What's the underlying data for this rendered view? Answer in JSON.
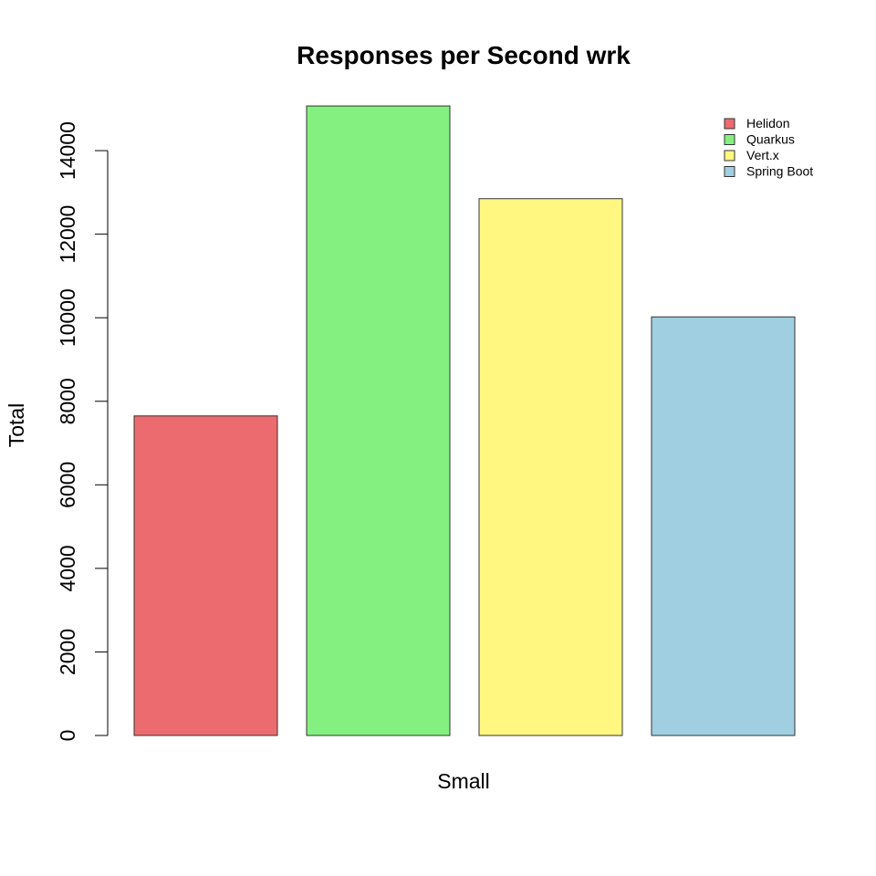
{
  "chart_data": {
    "type": "bar",
    "title": "Responses per Second wrk",
    "xlabel": "Small",
    "ylabel": "Total",
    "ylim": [
      0,
      15000
    ],
    "yticks": [
      0,
      2000,
      4000,
      6000,
      8000,
      10000,
      12000,
      14000
    ],
    "grid": false,
    "legend_position": "top-right",
    "series": [
      {
        "name": "Helidon",
        "value": 7650,
        "color": "#EB6B6F"
      },
      {
        "name": "Quarkus",
        "value": 15070,
        "color": "#83F07F"
      },
      {
        "name": "Vert.x",
        "value": 12850,
        "color": "#FFF780"
      },
      {
        "name": "Spring Boot",
        "value": 10020,
        "color": "#9FCFE0"
      }
    ]
  }
}
